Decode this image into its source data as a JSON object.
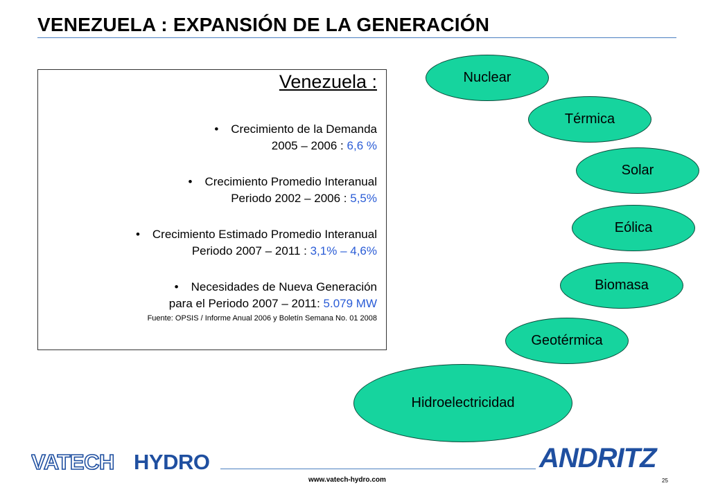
{
  "header": {
    "title": "VENEZUELA : EXPANSIÓN DE LA GENERACIÓN"
  },
  "box": {
    "heading": "Venezuela :",
    "items": [
      {
        "line1": "Crecimiento de la Demanda",
        "line2_prefix": "2005 – 2006  : ",
        "value": "6,6 %"
      },
      {
        "line1": "Crecimiento Promedio Interanual",
        "line2_prefix": "Periodo 2002 – 2006 : ",
        "value": "5,5%"
      },
      {
        "line1": "Crecimiento Estimado Promedio Interanual",
        "line2_prefix": "Periodo 2007 – 2011 : ",
        "value": "3,1% – 4,6%"
      },
      {
        "line1": "Necesidades de Nueva Generación",
        "line2_prefix": "para el Periodo 2007 – 2011: ",
        "value": "5.079 MW"
      }
    ],
    "bullet": "•",
    "source": "Fuente: OPSIS / Informe Anual 2006 y Boletín Semana No. 01 2008"
  },
  "ovals": [
    "Nuclear",
    "Térmica",
    "Solar",
    "Eólica",
    "Biomasa",
    "Geotérmica",
    "Hidroelectricidad"
  ],
  "footer": {
    "url": "www.vatech-hydro.com",
    "page": "25",
    "logo_left_a": "VATECH",
    "logo_left_b": "HYDRO",
    "logo_right": "ANDRITZ"
  },
  "colors": {
    "accent": "#4a7fc1",
    "value_blue": "#2a5cd6",
    "oval_fill": "#16d49e",
    "logo_blue": "#1f4fa0"
  }
}
